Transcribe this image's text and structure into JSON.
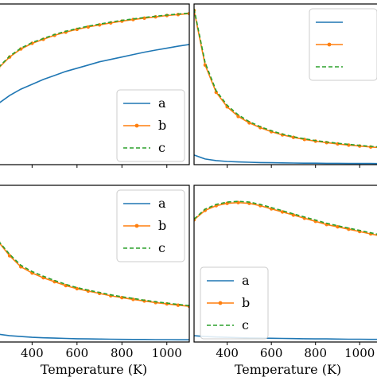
{
  "chart_data": [
    {
      "type": "line",
      "panel": "top-left",
      "xlabel": "",
      "xlim": [
        250,
        1100
      ],
      "ylim": [
        0,
        1.0
      ],
      "xticks": [
        400,
        600,
        800,
        1000
      ],
      "show_xtick_labels": false,
      "legend_position": "lower-right",
      "series": [
        {
          "name": "a",
          "color": "#1f77b4",
          "style": "solid",
          "x": [
            250,
            300,
            350,
            400,
            450,
            500,
            550,
            600,
            650,
            700,
            750,
            800,
            850,
            900,
            950,
            1000,
            1050,
            1100
          ],
          "y": [
            0.38,
            0.43,
            0.47,
            0.5,
            0.53,
            0.555,
            0.58,
            0.6,
            0.62,
            0.64,
            0.655,
            0.67,
            0.685,
            0.7,
            0.713,
            0.725,
            0.737,
            0.748
          ]
        },
        {
          "name": "b",
          "color": "#ff7f0e",
          "style": "solid-marker",
          "x": [
            250,
            300,
            350,
            400,
            450,
            500,
            550,
            600,
            650,
            700,
            750,
            800,
            850,
            900,
            950,
            1000,
            1050,
            1100
          ],
          "y": [
            0.6,
            0.67,
            0.72,
            0.755,
            0.78,
            0.805,
            0.825,
            0.842,
            0.857,
            0.87,
            0.882,
            0.893,
            0.903,
            0.912,
            0.92,
            0.928,
            0.934,
            0.94
          ]
        },
        {
          "name": "c",
          "color": "#2ca02c",
          "style": "dashed",
          "x": [
            250,
            300,
            350,
            400,
            450,
            500,
            550,
            600,
            650,
            700,
            750,
            800,
            850,
            900,
            950,
            1000,
            1050,
            1100
          ],
          "y": [
            0.605,
            0.675,
            0.725,
            0.76,
            0.785,
            0.81,
            0.83,
            0.847,
            0.862,
            0.875,
            0.887,
            0.898,
            0.907,
            0.916,
            0.924,
            0.931,
            0.937,
            0.943
          ]
        }
      ]
    },
    {
      "type": "line",
      "panel": "top-right",
      "xlabel": "",
      "xlim": [
        250,
        1100
      ],
      "ylim": [
        0,
        1.0
      ],
      "xticks": [
        400,
        600,
        800,
        1000
      ],
      "show_xtick_labels": false,
      "legend_position": "upper-right",
      "series": [
        {
          "name": "",
          "color": "#1f77b4",
          "style": "solid",
          "x": [
            250,
            300,
            350,
            400,
            450,
            500,
            550,
            600,
            650,
            700,
            750,
            800,
            850,
            900,
            950,
            1000,
            1050,
            1100
          ],
          "y": [
            0.06,
            0.035,
            0.025,
            0.02,
            0.017,
            0.015,
            0.013,
            0.012,
            0.011,
            0.01,
            0.009,
            0.009,
            0.008,
            0.008,
            0.007,
            0.007,
            0.007,
            0.006
          ]
        },
        {
          "name": "",
          "color": "#ff7f0e",
          "style": "solid-marker",
          "x": [
            250,
            300,
            350,
            400,
            450,
            500,
            550,
            600,
            650,
            700,
            750,
            800,
            850,
            900,
            950,
            1000,
            1050,
            1100
          ],
          "y": [
            0.96,
            0.62,
            0.45,
            0.36,
            0.3,
            0.26,
            0.23,
            0.205,
            0.185,
            0.17,
            0.157,
            0.146,
            0.137,
            0.129,
            0.122,
            0.116,
            0.11,
            0.105
          ]
        },
        {
          "name": "",
          "color": "#2ca02c",
          "style": "dashed",
          "x": [
            250,
            300,
            350,
            400,
            450,
            500,
            550,
            600,
            650,
            700,
            750,
            800,
            850,
            900,
            950,
            1000,
            1050,
            1100
          ],
          "y": [
            0.97,
            0.635,
            0.46,
            0.37,
            0.31,
            0.268,
            0.236,
            0.211,
            0.19,
            0.174,
            0.161,
            0.15,
            0.141,
            0.133,
            0.126,
            0.12,
            0.114,
            0.109
          ]
        }
      ]
    },
    {
      "type": "line",
      "panel": "bottom-left",
      "xlabel": "Temperature (K)",
      "xlim": [
        250,
        1100
      ],
      "ylim": [
        0,
        1.0
      ],
      "xticks": [
        400,
        600,
        800,
        1000
      ],
      "show_xtick_labels": true,
      "legend_position": "upper-right",
      "series": [
        {
          "name": "a",
          "color": "#1f77b4",
          "style": "solid",
          "x": [
            250,
            300,
            350,
            400,
            450,
            500,
            550,
            600,
            650,
            700,
            750,
            800,
            850,
            900,
            950,
            1000,
            1050,
            1100
          ],
          "y": [
            0.05,
            0.04,
            0.035,
            0.03,
            0.027,
            0.025,
            0.023,
            0.021,
            0.02,
            0.019,
            0.018,
            0.017,
            0.016,
            0.016,
            0.015,
            0.015,
            0.014,
            0.014
          ]
        },
        {
          "name": "b",
          "color": "#ff7f0e",
          "style": "solid-marker",
          "x": [
            250,
            300,
            350,
            400,
            450,
            500,
            550,
            600,
            650,
            700,
            750,
            800,
            850,
            900,
            950,
            1000,
            1050,
            1100
          ],
          "y": [
            0.64,
            0.55,
            0.48,
            0.44,
            0.41,
            0.385,
            0.36,
            0.34,
            0.325,
            0.31,
            0.295,
            0.283,
            0.272,
            0.262,
            0.252,
            0.243,
            0.235,
            0.228
          ]
        },
        {
          "name": "c",
          "color": "#2ca02c",
          "style": "dashed",
          "x": [
            250,
            300,
            350,
            400,
            450,
            500,
            550,
            600,
            650,
            700,
            750,
            800,
            850,
            900,
            950,
            1000,
            1050,
            1100
          ],
          "y": [
            0.645,
            0.56,
            0.49,
            0.45,
            0.42,
            0.393,
            0.368,
            0.347,
            0.331,
            0.316,
            0.301,
            0.289,
            0.278,
            0.267,
            0.257,
            0.248,
            0.24,
            0.232
          ]
        }
      ]
    },
    {
      "type": "line",
      "panel": "bottom-right",
      "xlabel": "Temperature (K)",
      "xlim": [
        250,
        1100
      ],
      "ylim": [
        0,
        1.0
      ],
      "xticks": [
        400,
        600,
        800,
        1000
      ],
      "show_xtick_labels": true,
      "legend_position": "lower-left",
      "series": [
        {
          "name": "a",
          "color": "#1f77b4",
          "style": "solid",
          "x": [
            250,
            300,
            350,
            400,
            450,
            500,
            550,
            600,
            650,
            700,
            750,
            800,
            850,
            900,
            950,
            1000,
            1050,
            1100
          ],
          "y": [
            0.04,
            0.035,
            0.032,
            0.03,
            0.028,
            0.026,
            0.025,
            0.024,
            0.023,
            0.022,
            0.021,
            0.02,
            0.02,
            0.019,
            0.018,
            0.018,
            0.017,
            0.017
          ]
        },
        {
          "name": "b",
          "color": "#ff7f0e",
          "style": "solid-marker",
          "x": [
            250,
            300,
            350,
            400,
            450,
            500,
            550,
            600,
            650,
            700,
            750,
            800,
            850,
            900,
            950,
            1000,
            1050,
            1100
          ],
          "y": [
            0.78,
            0.84,
            0.87,
            0.885,
            0.89,
            0.885,
            0.87,
            0.85,
            0.83,
            0.81,
            0.79,
            0.77,
            0.75,
            0.735,
            0.72,
            0.705,
            0.69,
            0.675
          ]
        },
        {
          "name": "c",
          "color": "#2ca02c",
          "style": "dashed",
          "x": [
            250,
            300,
            350,
            400,
            450,
            500,
            550,
            600,
            650,
            700,
            750,
            800,
            850,
            900,
            950,
            1000,
            1050,
            1100
          ],
          "y": [
            0.785,
            0.848,
            0.878,
            0.893,
            0.898,
            0.893,
            0.878,
            0.858,
            0.838,
            0.818,
            0.798,
            0.778,
            0.758,
            0.742,
            0.727,
            0.712,
            0.697,
            0.682
          ]
        }
      ]
    }
  ]
}
